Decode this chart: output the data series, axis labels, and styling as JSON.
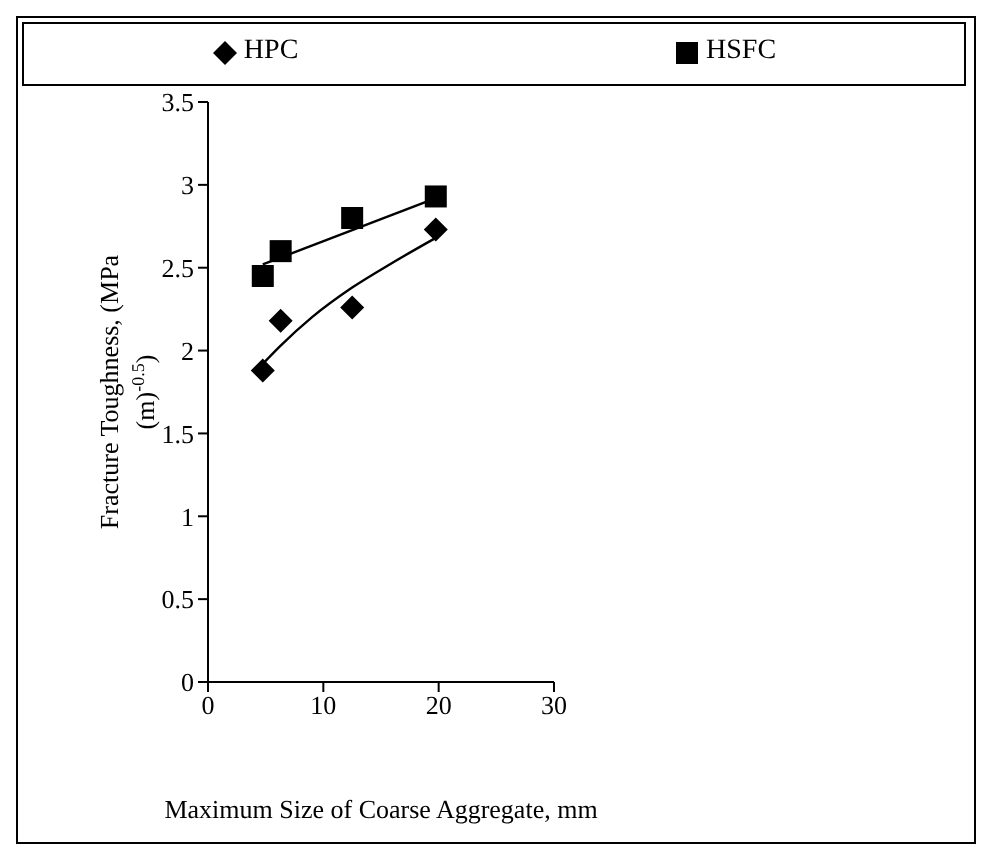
{
  "chart_data": {
    "type": "scatter",
    "xlabel": "Maximum Size of Coarse Aggregate, mm",
    "ylabel": "Fracture Toughness, (MPa\n(m)$^{-0.5}$)",
    "xlim": [
      0,
      30
    ],
    "xticks": [
      0,
      10,
      20,
      30
    ],
    "ylim": [
      0,
      3.5
    ],
    "yticks": [
      0,
      0.5,
      1,
      1.5,
      2,
      2.5,
      3,
      3.5
    ],
    "grid": false,
    "legend": "top",
    "series": [
      {
        "name": "HPC",
        "marker": "diamond",
        "color": "#000000",
        "x": [
          4.75,
          6.3,
          12.5,
          19.75
        ],
        "values": [
          1.88,
          2.18,
          2.26,
          2.73
        ]
      },
      {
        "name": "HSFC",
        "marker": "square",
        "color": "#000000",
        "x": [
          4.75,
          6.3,
          12.5,
          19.75
        ],
        "values": [
          2.45,
          2.6,
          2.8,
          2.93
        ]
      },
      {
        "type": "line",
        "marker": "none",
        "color": "#000000",
        "x": [
          4.75,
          6.3,
          9,
          12.5,
          16,
          19.75
        ],
        "values": [
          1.92,
          2.03,
          2.2,
          2.38,
          2.53,
          2.68
        ]
      },
      {
        "type": "line",
        "marker": "none",
        "color": "#000000",
        "x": [
          4.75,
          19.75
        ],
        "values": [
          2.52,
          2.92
        ]
      }
    ]
  }
}
